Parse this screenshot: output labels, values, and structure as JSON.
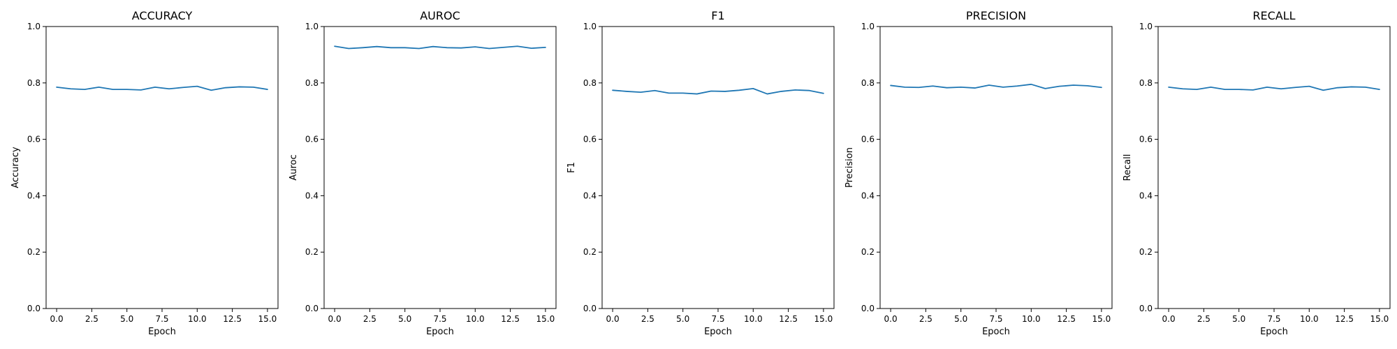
{
  "chart_data": [
    {
      "type": "line",
      "title": "ACCURACY",
      "xlabel": "Epoch",
      "ylabel": "Accuracy",
      "x": [
        0,
        1,
        2,
        3,
        4,
        5,
        6,
        7,
        8,
        9,
        10,
        11,
        12,
        13,
        14,
        15
      ],
      "xticks": [
        "0.0",
        "2.5",
        "5.0",
        "7.5",
        "10.0",
        "12.5",
        "15.0"
      ],
      "yticks": [
        "0.0",
        "0.2",
        "0.4",
        "0.6",
        "0.8",
        "1.0"
      ],
      "xlim": [
        -0.75,
        15.75
      ],
      "ylim": [
        0,
        1
      ],
      "series": [
        {
          "values": [
            0.785,
            0.779,
            0.777,
            0.785,
            0.777,
            0.777,
            0.775,
            0.785,
            0.779,
            0.784,
            0.788,
            0.774,
            0.783,
            0.786,
            0.785,
            0.777
          ]
        }
      ],
      "color": "#1f77b4",
      "grid": false
    },
    {
      "type": "line",
      "title": "AUROC",
      "xlabel": "Epoch",
      "ylabel": "Auroc",
      "x": [
        0,
        1,
        2,
        3,
        4,
        5,
        6,
        7,
        8,
        9,
        10,
        11,
        12,
        13,
        14,
        15
      ],
      "xticks": [
        "0.0",
        "2.5",
        "5.0",
        "7.5",
        "10.0",
        "12.5",
        "15.0"
      ],
      "yticks": [
        "0.0",
        "0.2",
        "0.4",
        "0.6",
        "0.8",
        "1.0"
      ],
      "xlim": [
        -0.75,
        15.75
      ],
      "ylim": [
        0,
        1
      ],
      "series": [
        {
          "values": [
            0.93,
            0.922,
            0.925,
            0.929,
            0.925,
            0.925,
            0.922,
            0.929,
            0.925,
            0.924,
            0.928,
            0.922,
            0.926,
            0.93,
            0.923,
            0.926
          ]
        }
      ],
      "color": "#1f77b4",
      "grid": false
    },
    {
      "type": "line",
      "title": "F1",
      "xlabel": "Epoch",
      "ylabel": "F1",
      "x": [
        0,
        1,
        2,
        3,
        4,
        5,
        6,
        7,
        8,
        9,
        10,
        11,
        12,
        13,
        14,
        15
      ],
      "xticks": [
        "0.0",
        "2.5",
        "5.0",
        "7.5",
        "10.0",
        "12.5",
        "15.0"
      ],
      "yticks": [
        "0.0",
        "0.2",
        "0.4",
        "0.6",
        "0.8",
        "1.0"
      ],
      "xlim": [
        -0.75,
        15.75
      ],
      "ylim": [
        0,
        1
      ],
      "series": [
        {
          "values": [
            0.774,
            0.77,
            0.767,
            0.773,
            0.764,
            0.764,
            0.761,
            0.771,
            0.77,
            0.774,
            0.78,
            0.761,
            0.77,
            0.775,
            0.773,
            0.763
          ]
        }
      ],
      "color": "#1f77b4",
      "grid": false
    },
    {
      "type": "line",
      "title": "PRECISION",
      "xlabel": "Epoch",
      "ylabel": "Precision",
      "x": [
        0,
        1,
        2,
        3,
        4,
        5,
        6,
        7,
        8,
        9,
        10,
        11,
        12,
        13,
        14,
        15
      ],
      "xticks": [
        "0.0",
        "2.5",
        "5.0",
        "7.5",
        "10.0",
        "12.5",
        "15.0"
      ],
      "yticks": [
        "0.0",
        "0.2",
        "0.4",
        "0.6",
        "0.8",
        "1.0"
      ],
      "xlim": [
        -0.75,
        15.75
      ],
      "ylim": [
        0,
        1
      ],
      "series": [
        {
          "values": [
            0.791,
            0.785,
            0.784,
            0.789,
            0.783,
            0.785,
            0.782,
            0.792,
            0.785,
            0.789,
            0.795,
            0.78,
            0.788,
            0.792,
            0.79,
            0.784
          ]
        }
      ],
      "color": "#1f77b4",
      "grid": false
    },
    {
      "type": "line",
      "title": "RECALL",
      "xlabel": "Epoch",
      "ylabel": "Recall",
      "x": [
        0,
        1,
        2,
        3,
        4,
        5,
        6,
        7,
        8,
        9,
        10,
        11,
        12,
        13,
        14,
        15
      ],
      "xticks": [
        "0.0",
        "2.5",
        "5.0",
        "7.5",
        "10.0",
        "12.5",
        "15.0"
      ],
      "yticks": [
        "0.0",
        "0.2",
        "0.4",
        "0.6",
        "0.8",
        "1.0"
      ],
      "xlim": [
        -0.75,
        15.75
      ],
      "ylim": [
        0,
        1
      ],
      "series": [
        {
          "values": [
            0.785,
            0.779,
            0.777,
            0.785,
            0.777,
            0.777,
            0.775,
            0.785,
            0.779,
            0.784,
            0.788,
            0.774,
            0.783,
            0.786,
            0.785,
            0.777
          ]
        }
      ],
      "color": "#1f77b4",
      "grid": false
    }
  ]
}
